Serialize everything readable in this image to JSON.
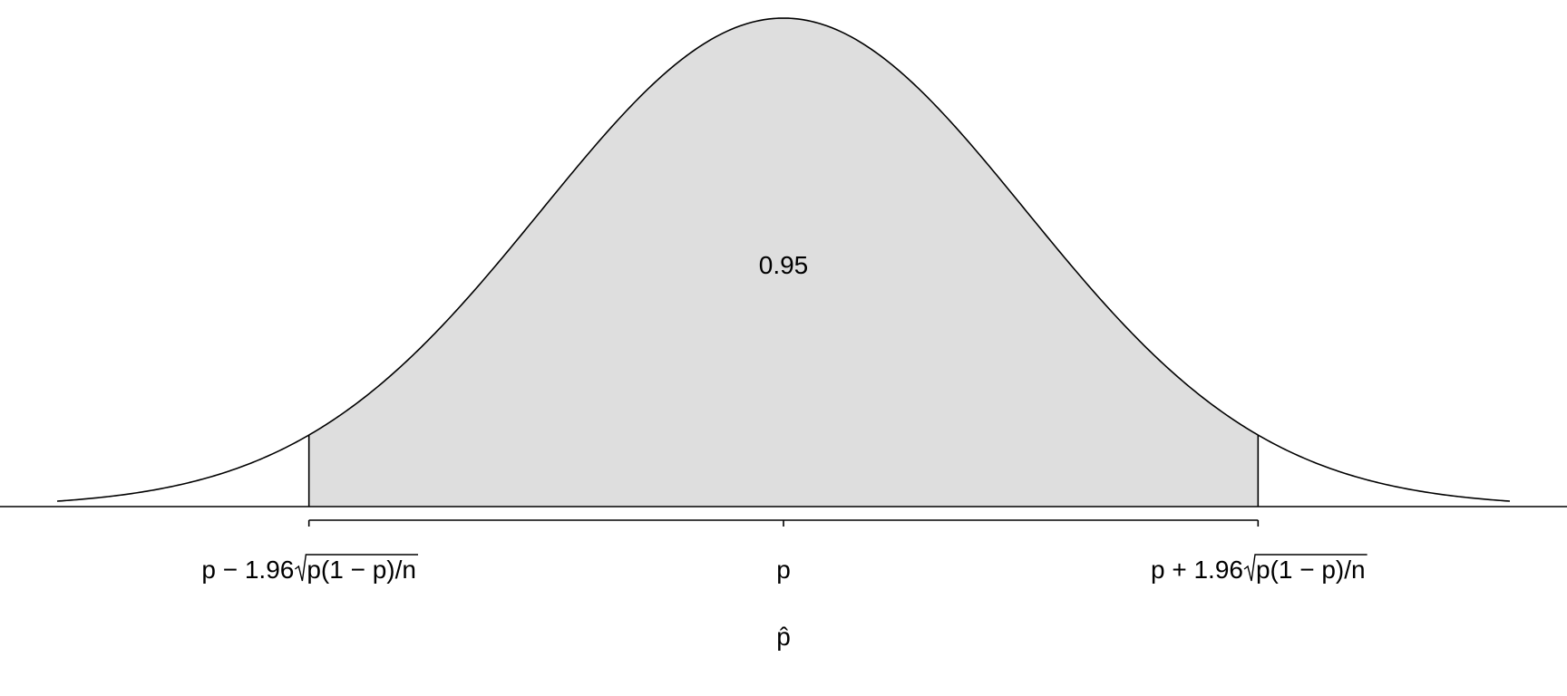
{
  "chart_data": {
    "type": "area",
    "title": "",
    "xlabel": "p̂",
    "ylabel": "",
    "distribution": "normal",
    "mean": 0,
    "sd": 1,
    "xlim": [
      -3,
      3
    ],
    "shaded_interval": [
      -1.96,
      1.96
    ],
    "shaded_probability_label": "0.95",
    "shade_color": "#dedede",
    "line_color": "#000000",
    "ticks": [
      {
        "x": -1.96,
        "label": {
          "pre": "p − 1.96",
          "radicand": "p(1 − p)/n"
        }
      },
      {
        "x": 0,
        "label": {
          "pre": "p",
          "radicand": ""
        }
      },
      {
        "x": 1.96,
        "label": {
          "pre": "p + 1.96",
          "radicand": "p(1 − p)/n"
        }
      }
    ]
  }
}
